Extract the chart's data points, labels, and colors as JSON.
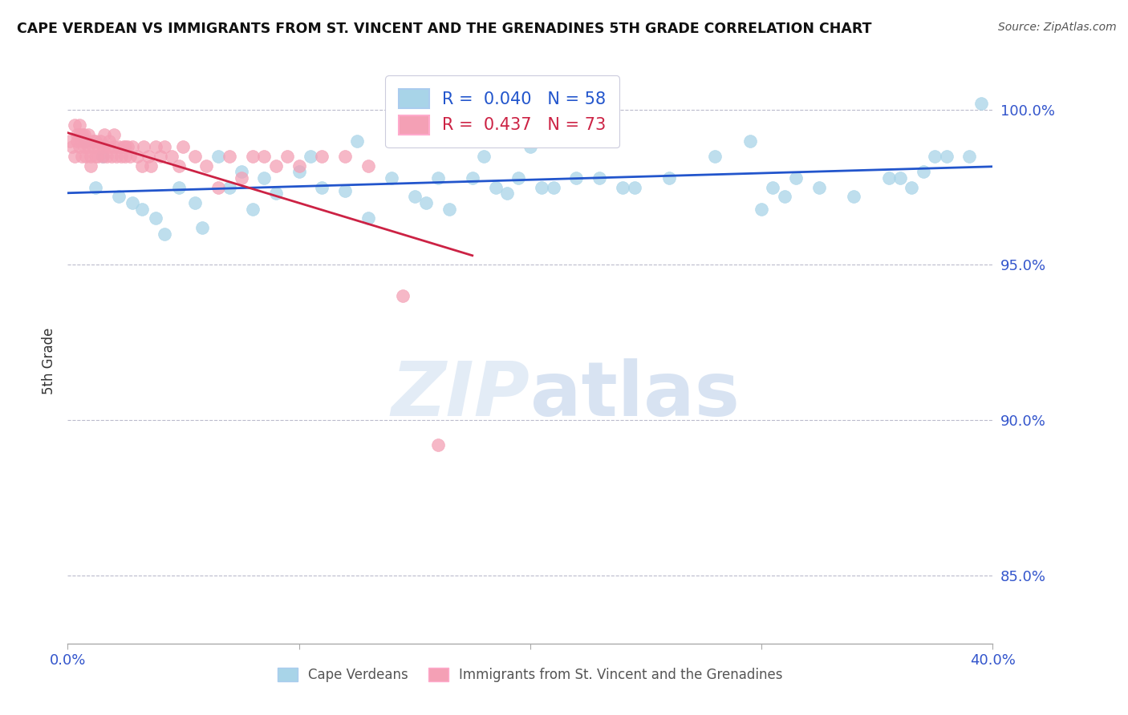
{
  "title": "CAPE VERDEAN VS IMMIGRANTS FROM ST. VINCENT AND THE GRENADINES 5TH GRADE CORRELATION CHART",
  "source": "Source: ZipAtlas.com",
  "ylabel": "5th Grade",
  "xlim": [
    0.0,
    0.4
  ],
  "ylim": [
    0.828,
    1.01
  ],
  "xticks": [
    0.0,
    0.1,
    0.2,
    0.3,
    0.4
  ],
  "xtick_labels": [
    "0.0%",
    "",
    "",
    "",
    "40.0%"
  ],
  "yticks": [
    0.85,
    0.9,
    0.95,
    1.0
  ],
  "ytick_labels": [
    "85.0%",
    "90.0%",
    "95.0%",
    "100.0%"
  ],
  "blue_R": 0.04,
  "blue_N": 58,
  "pink_R": 0.437,
  "pink_N": 73,
  "blue_color": "#a8d4e8",
  "pink_color": "#f4a0b5",
  "blue_line_color": "#2255cc",
  "pink_line_color": "#cc2244",
  "legend_blue_label": "Cape Verdeans",
  "legend_pink_label": "Immigrants from St. Vincent and the Grenadines",
  "axis_color": "#3355cc",
  "blue_x": [
    0.008,
    0.012,
    0.015,
    0.022,
    0.028,
    0.032,
    0.038,
    0.042,
    0.048,
    0.055,
    0.058,
    0.065,
    0.07,
    0.075,
    0.08,
    0.085,
    0.09,
    0.1,
    0.105,
    0.11,
    0.12,
    0.125,
    0.13,
    0.14,
    0.15,
    0.16,
    0.17,
    0.175,
    0.18,
    0.19,
    0.2,
    0.205,
    0.21,
    0.22,
    0.23,
    0.245,
    0.26,
    0.28,
    0.295,
    0.3,
    0.305,
    0.315,
    0.325,
    0.34,
    0.355,
    0.36,
    0.365,
    0.37,
    0.375,
    0.38,
    0.39,
    0.395,
    0.155,
    0.165,
    0.185,
    0.195,
    0.24,
    0.31
  ],
  "blue_y": [
    0.99,
    0.975,
    0.985,
    0.972,
    0.97,
    0.968,
    0.965,
    0.96,
    0.975,
    0.97,
    0.962,
    0.985,
    0.975,
    0.98,
    0.968,
    0.978,
    0.973,
    0.98,
    0.985,
    0.975,
    0.974,
    0.99,
    0.965,
    0.978,
    0.972,
    0.978,
    0.99,
    0.978,
    0.985,
    0.973,
    0.988,
    0.975,
    0.975,
    0.978,
    0.978,
    0.975,
    0.978,
    0.985,
    0.99,
    0.968,
    0.975,
    0.978,
    0.975,
    0.972,
    0.978,
    0.978,
    0.975,
    0.98,
    0.985,
    0.985,
    0.985,
    1.002,
    0.97,
    0.968,
    0.975,
    0.978,
    0.975,
    0.972
  ],
  "pink_x": [
    0.001,
    0.002,
    0.003,
    0.004,
    0.005,
    0.005,
    0.006,
    0.006,
    0.007,
    0.007,
    0.008,
    0.008,
    0.009,
    0.009,
    0.01,
    0.01,
    0.011,
    0.011,
    0.012,
    0.012,
    0.013,
    0.013,
    0.014,
    0.015,
    0.015,
    0.016,
    0.016,
    0.017,
    0.018,
    0.018,
    0.019,
    0.02,
    0.02,
    0.021,
    0.022,
    0.023,
    0.024,
    0.025,
    0.025,
    0.026,
    0.027,
    0.028,
    0.03,
    0.032,
    0.033,
    0.035,
    0.036,
    0.038,
    0.04,
    0.042,
    0.045,
    0.048,
    0.05,
    0.055,
    0.06,
    0.065,
    0.07,
    0.075,
    0.08,
    0.085,
    0.09,
    0.095,
    0.1,
    0.11,
    0.12,
    0.13,
    0.145,
    0.16,
    0.003,
    0.004,
    0.005,
    0.006,
    0.007
  ],
  "pink_y": [
    0.99,
    0.988,
    0.985,
    0.99,
    0.992,
    0.988,
    0.99,
    0.985,
    0.992,
    0.988,
    0.985,
    0.99,
    0.992,
    0.988,
    0.985,
    0.982,
    0.99,
    0.988,
    0.985,
    0.99,
    0.988,
    0.985,
    0.99,
    0.988,
    0.985,
    0.992,
    0.988,
    0.985,
    0.99,
    0.988,
    0.985,
    0.988,
    0.992,
    0.985,
    0.988,
    0.985,
    0.988,
    0.985,
    0.988,
    0.988,
    0.985,
    0.988,
    0.985,
    0.982,
    0.988,
    0.985,
    0.982,
    0.988,
    0.985,
    0.988,
    0.985,
    0.982,
    0.988,
    0.985,
    0.982,
    0.975,
    0.985,
    0.978,
    0.985,
    0.985,
    0.982,
    0.985,
    0.982,
    0.985,
    0.985,
    0.982,
    0.94,
    0.892,
    0.995,
    0.992,
    0.995,
    0.992,
    0.99
  ]
}
